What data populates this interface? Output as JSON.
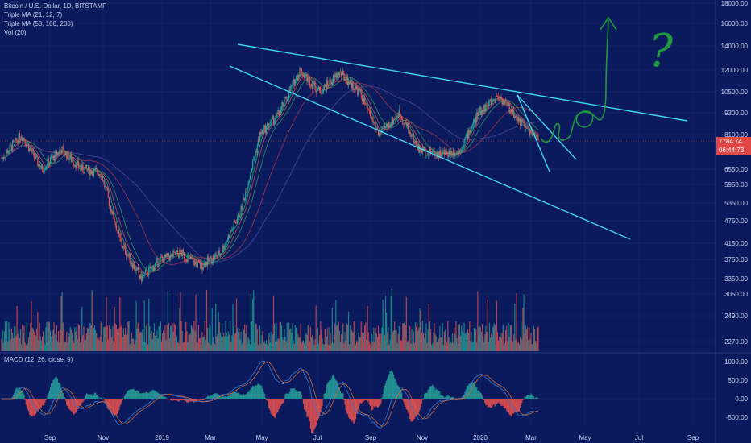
{
  "legend": {
    "line1": "Bitcoin / U.S. Dollar, 1D, BITSTAMP",
    "line2": "Triple MA (21, 12, 7)",
    "line3": "Triple MA (50, 100, 200)",
    "line4": "Vol (20)"
  },
  "macd_label": "MACD (12, 26, close, 9)",
  "price_label": "7784.74",
  "countdown_label": "06:44:73",
  "annotation": "?",
  "colors": {
    "background": "#0a1a5c",
    "up": "#26a69a",
    "down": "#ef5350",
    "trendline": "#3fd4f0",
    "drawing": "#1e9a3e"
  },
  "chart_data": {
    "type": "candlestick",
    "price_axis_ticks": [
      "18000.00",
      "16000.00",
      "14000.00",
      "12000.00",
      "10500.00",
      "9300.00",
      "8100.00",
      "6550.00",
      "5950.00",
      "5350.00",
      "4750.00",
      "4150.00",
      "3750.00",
      "3350.00",
      "3050.00",
      "2490.00",
      "2270.00"
    ],
    "macd_axis_ticks": [
      "1000.00",
      "500.00",
      "0.00",
      "-500.00"
    ],
    "x_ticks": [
      "Sep",
      "Nov",
      "2019",
      "Mar",
      "May",
      "Jul",
      "Sep",
      "Nov",
      "2020",
      "Mar",
      "May",
      "Jul",
      "Sep"
    ],
    "close_path": [
      {
        "date": "Aug",
        "value": 7000
      },
      {
        "date": "Aug",
        "value": 8100
      },
      {
        "date": "Sep",
        "value": 6550
      },
      {
        "date": "Sep",
        "value": 7400
      },
      {
        "date": "Oct",
        "value": 6550
      },
      {
        "date": "Nov",
        "value": 6400
      },
      {
        "date": "Nov",
        "value": 4150
      },
      {
        "date": "Dec",
        "value": 3350
      },
      {
        "date": "Dec",
        "value": 3750
      },
      {
        "date": "2019",
        "value": 3900
      },
      {
        "date": "Feb",
        "value": 3600
      },
      {
        "date": "Mar",
        "value": 3900
      },
      {
        "date": "Apr",
        "value": 5000
      },
      {
        "date": "May",
        "value": 8100
      },
      {
        "date": "Jun",
        "value": 9300
      },
      {
        "date": "Jul",
        "value": 12000
      },
      {
        "date": "Jul",
        "value": 10500
      },
      {
        "date": "Aug",
        "value": 11800
      },
      {
        "date": "Sep",
        "value": 10500
      },
      {
        "date": "Sep",
        "value": 8100
      },
      {
        "date": "Oct",
        "value": 9300
      },
      {
        "date": "Nov",
        "value": 7400
      },
      {
        "date": "Dec",
        "value": 7200
      },
      {
        "date": "2020",
        "value": 7300
      },
      {
        "date": "Jan",
        "value": 9300
      },
      {
        "date": "Feb",
        "value": 10300
      },
      {
        "date": "Mar",
        "value": 8900
      },
      {
        "date": "Mar",
        "value": 7784.74
      }
    ],
    "volume_range": [
      2270,
      3350
    ],
    "macd_range": [
      -700,
      1100
    ]
  }
}
